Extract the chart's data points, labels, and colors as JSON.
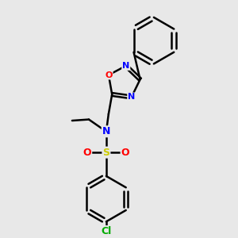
{
  "bg_color": "#e8e8e8",
  "line_color": "#000000",
  "bond_width": 1.8,
  "atom_colors": {
    "N": "#0000ff",
    "O": "#ff0000",
    "S": "#cccc00",
    "Cl": "#00aa00"
  },
  "figsize": [
    3.0,
    3.0
  ],
  "dpi": 100
}
